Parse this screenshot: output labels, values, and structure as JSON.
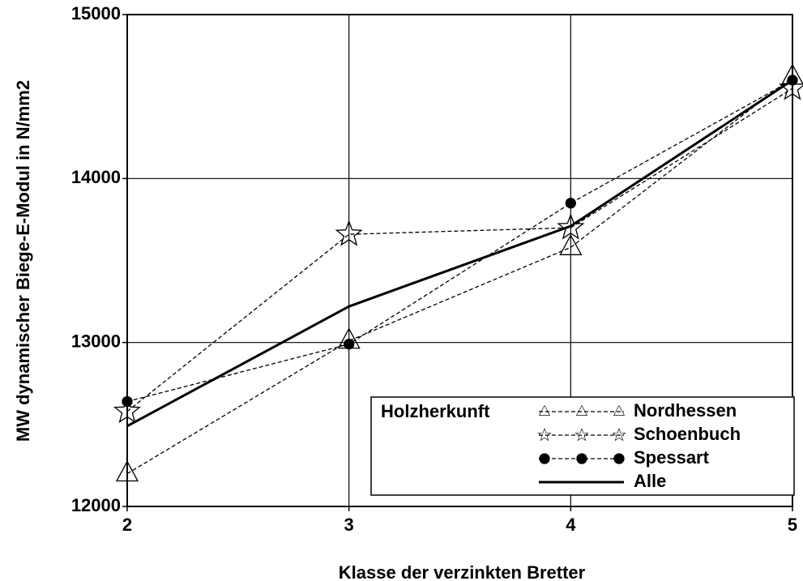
{
  "chart_data": {
    "type": "line",
    "x_label": "Klasse der verzinkten Bretter",
    "y_label": "MW dynamischer Biege-E-Modul in N/mm2",
    "x": [
      2,
      3,
      4,
      5
    ],
    "xlim": [
      2,
      5
    ],
    "xticks": [
      2,
      3,
      4,
      5
    ],
    "ylim": [
      12000,
      15000
    ],
    "yticks": [
      12000,
      13000,
      14000,
      15000
    ],
    "grid": true,
    "legend_title": "Holzherkunft",
    "legend": "lower right",
    "series": [
      {
        "name": "Nordhessen",
        "color": "#000000",
        "marker": "triangle",
        "dashed": true,
        "values": [
          12200,
          13010,
          13580,
          14620
        ]
      },
      {
        "name": "Schoenbuch",
        "color": "#000000",
        "marker": "star",
        "dashed": true,
        "values": [
          12580,
          13660,
          13700,
          14550
        ]
      },
      {
        "name": "Spessart",
        "color": "#000000",
        "marker": "circle",
        "dashed": true,
        "values": [
          12640,
          12990,
          13850,
          14600
        ]
      },
      {
        "name": "Alle",
        "color": "#000000",
        "marker": null,
        "dashed": false,
        "values": [
          12490,
          13220,
          13710,
          14600
        ]
      }
    ]
  }
}
